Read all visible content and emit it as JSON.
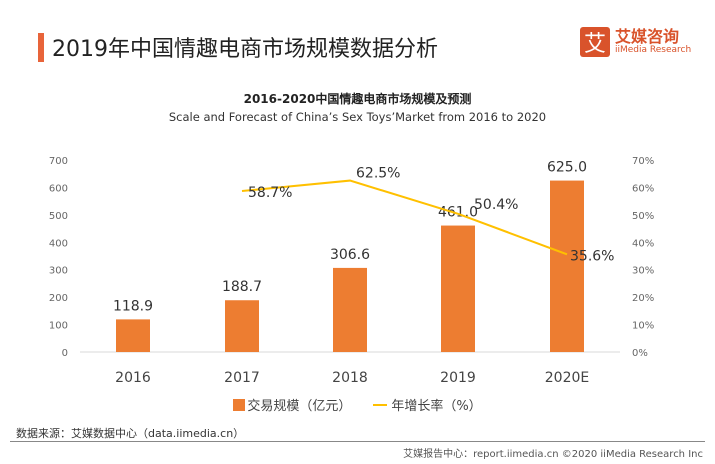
{
  "header": {
    "title": "2019年中国情趣电商市场规模数据分析",
    "logo_mark": "艾",
    "logo_cn": "艾媒咨询",
    "logo_en": "iiMedia Research"
  },
  "chart_data": {
    "type": "bar+line",
    "title": "2016-2020中国情趣电商市场规模及预测",
    "subtitle": "Scale and Forecast of China’s Sex Toys’Market from 2016 to 2020",
    "categories": [
      "2016",
      "2017",
      "2018",
      "2019",
      "2020E"
    ],
    "series": [
      {
        "name": "交易规模（亿元）",
        "type": "bar",
        "axis": "left",
        "color": "#ed7d31",
        "values": [
          118.9,
          188.7,
          306.6,
          461.0,
          625.0
        ],
        "labels": [
          "118.9",
          "188.7",
          "306.6",
          "461.0",
          "625.0"
        ]
      },
      {
        "name": "年增长率（%）",
        "type": "line",
        "axis": "right",
        "color": "#ffc000",
        "values": [
          null,
          58.7,
          62.5,
          50.4,
          35.6
        ],
        "labels": [
          "",
          "58.7%",
          "62.5%",
          "50.4%",
          "35.6%"
        ]
      }
    ],
    "y_left": {
      "range": [
        0,
        700
      ],
      "ticks": [
        "0",
        "100",
        "200",
        "300",
        "400",
        "500",
        "600",
        "700"
      ]
    },
    "y_right": {
      "range": [
        0,
        70
      ],
      "ticks": [
        "0%",
        "10%",
        "20%",
        "30%",
        "40%",
        "50%",
        "60%",
        "70%"
      ]
    },
    "grid": false,
    "legend": "bottom"
  },
  "source": "数据来源：艾媒数据中心（data.iimedia.cn）",
  "footer": "艾媒报告中心：report.iimedia.cn   ©2020  iiMedia Research  Inc"
}
